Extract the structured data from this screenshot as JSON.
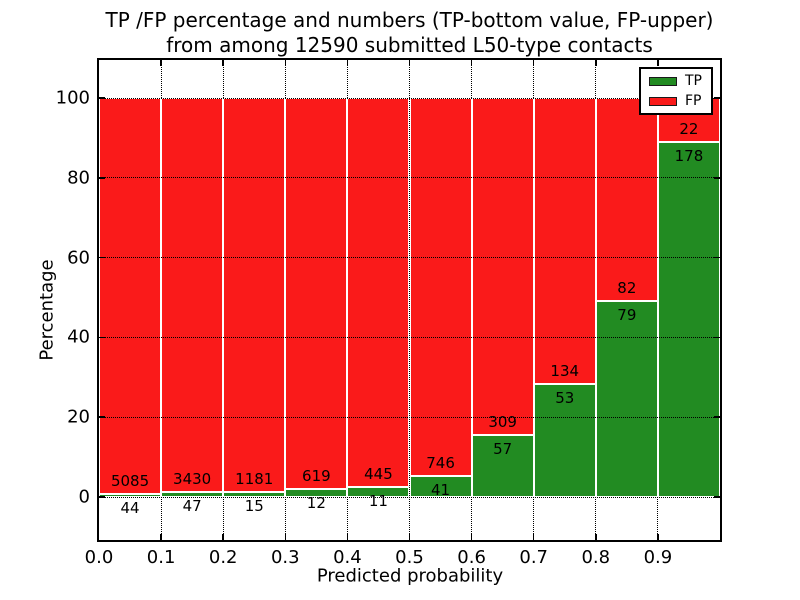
{
  "figure": {
    "title_line1": "TP /FP percentage and numbers (TP-bottom value, FP-upper)",
    "title_line2": "from among 12590 submitted L50-type contacts"
  },
  "chart_data": {
    "type": "bar",
    "stacked": true,
    "normalized": "each bin scaled to 100%",
    "title": "TP /FP percentage and numbers (TP-bottom value, FP-upper)\nfrom among 12590 submitted L50-type contacts",
    "xlabel": "Predicted probability",
    "ylabel": "Percentage",
    "total_submitted": 12590,
    "bin_edges": [
      0.0,
      0.1,
      0.2,
      0.3,
      0.4,
      0.5,
      0.6,
      0.7,
      0.8,
      0.9,
      1.0
    ],
    "x_tick_labels": [
      "0.0",
      "0.1",
      "0.2",
      "0.3",
      "0.4",
      "0.5",
      "0.6",
      "0.7",
      "0.8",
      "0.9"
    ],
    "y_ticks": [
      0,
      20,
      40,
      60,
      80,
      100
    ],
    "y_tick_labels": [
      "0",
      "20",
      "40",
      "60",
      "80",
      "100"
    ],
    "ylim": [
      -10.8,
      109.6
    ],
    "grid": "dotted black, horizontal and vertical",
    "legend": {
      "position": "upper-right",
      "entries": [
        {
          "label": "TP",
          "color": "#228b22"
        },
        {
          "label": "FP",
          "color": "#fa1a1a"
        }
      ]
    },
    "series": [
      {
        "name": "TP",
        "color": "#228b22",
        "values": [
          44,
          47,
          15,
          12,
          11,
          41,
          57,
          53,
          79,
          178
        ]
      },
      {
        "name": "FP",
        "color": "#fa1a1a",
        "values": [
          5085,
          3430,
          1181,
          619,
          445,
          746,
          309,
          134,
          82,
          22
        ]
      }
    ],
    "tp_percent_of_bin": [
      0.86,
      1.35,
      1.25,
      1.9,
      2.41,
      5.21,
      15.57,
      28.34,
      49.07,
      89.0
    ]
  }
}
